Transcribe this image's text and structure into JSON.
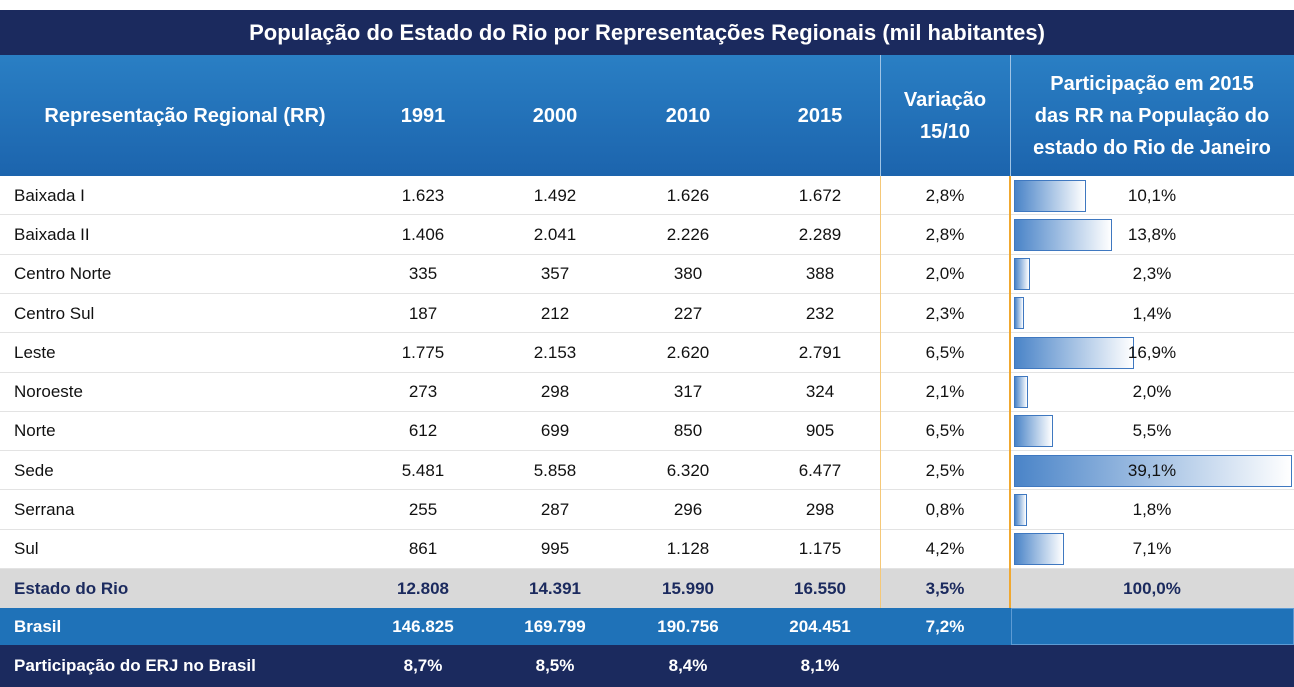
{
  "title": "População do Estado do Rio por Representações Regionais  (mil habitantes)",
  "header": [
    "Representação Regional (RR)",
    "1991",
    "2000",
    "2010",
    "2015",
    [
      "Variação",
      "15/10"
    ],
    [
      "Participação em 2015",
      "das RR na População do",
      "estado do Rio de Janeiro"
    ]
  ],
  "rows": [
    {
      "name": "Baixada I",
      "values": [
        "1.623",
        "1.492",
        "1.626",
        "1.672"
      ],
      "variation": "2,8%",
      "share": 10.1,
      "share_label": "10,1%"
    },
    {
      "name": "Baixada II",
      "values": [
        "1.406",
        "2.041",
        "2.226",
        "2.289"
      ],
      "variation": "2,8%",
      "share": 13.8,
      "share_label": "13,8%"
    },
    {
      "name": "Centro Norte",
      "values": [
        "335",
        "357",
        "380",
        "388"
      ],
      "variation": "2,0%",
      "share": 2.3,
      "share_label": "2,3%"
    },
    {
      "name": "Centro Sul",
      "values": [
        "187",
        "212",
        "227",
        "232"
      ],
      "variation": "2,3%",
      "share": 1.4,
      "share_label": "1,4%"
    },
    {
      "name": "Leste",
      "values": [
        "1.775",
        "2.153",
        "2.620",
        "2.791"
      ],
      "variation": "6,5%",
      "share": 16.9,
      "share_label": "16,9%"
    },
    {
      "name": "Noroeste",
      "values": [
        "273",
        "298",
        "317",
        "324"
      ],
      "variation": "2,1%",
      "share": 2.0,
      "share_label": "2,0%"
    },
    {
      "name": "Norte",
      "values": [
        "612",
        "699",
        "850",
        "905"
      ],
      "variation": "6,5%",
      "share": 5.5,
      "share_label": "5,5%"
    },
    {
      "name": "Sede",
      "values": [
        "5.481",
        "5.858",
        "6.320",
        "6.477"
      ],
      "variation": "2,5%",
      "share": 39.1,
      "share_label": "39,1%"
    },
    {
      "name": "Serrana",
      "values": [
        "255",
        "287",
        "296",
        "298"
      ],
      "variation": "0,8%",
      "share": 1.8,
      "share_label": "1,8%"
    },
    {
      "name": "Sul",
      "values": [
        "861",
        "995",
        "1.128",
        "1.175"
      ],
      "variation": "4,2%",
      "share": 7.1,
      "share_label": "7,1%"
    }
  ],
  "total": {
    "name": "Estado do Rio",
    "values": [
      "12.808",
      "14.391",
      "15.990",
      "16.550"
    ],
    "variation": "3,5%",
    "share": "100,0%"
  },
  "brasil": {
    "name": "Brasil",
    "values": [
      "146.825",
      "169.799",
      "190.756",
      "204.451"
    ],
    "variation": "7,2%"
  },
  "participacao": {
    "name": "Participação do ERJ no Brasil",
    "values": [
      "8,7%",
      "8,5%",
      "8,4%",
      "8,1%"
    ]
  }
}
